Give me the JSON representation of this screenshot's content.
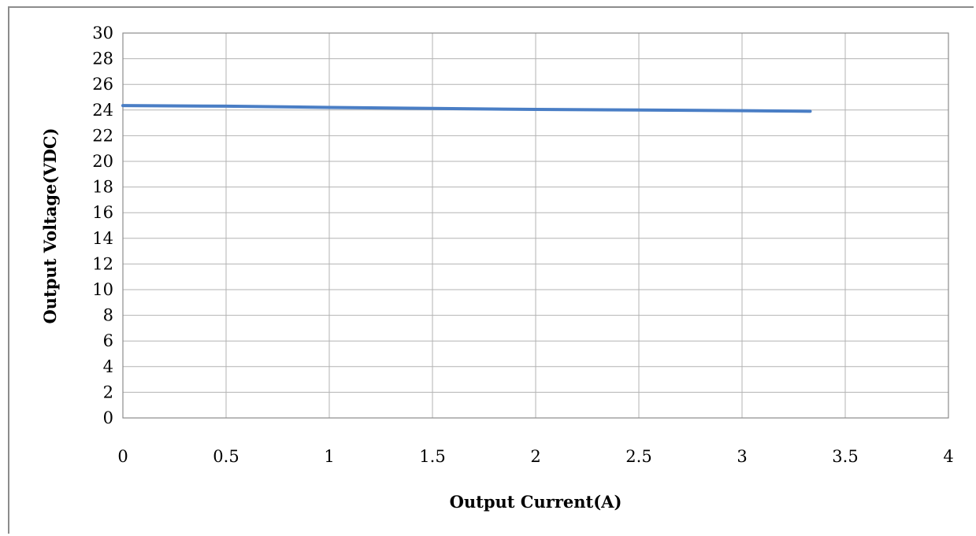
{
  "chart_data": {
    "type": "line",
    "title": "",
    "xlabel": "Output Current(A)",
    "ylabel": "Output Voltage(VDC)",
    "xlim": [
      0,
      4
    ],
    "ylim": [
      0,
      30
    ],
    "x_ticks": [
      "0",
      "0.5",
      "1",
      "1.5",
      "2",
      "2.5",
      "3",
      "3.5",
      "4"
    ],
    "y_ticks": [
      "0",
      "2",
      "4",
      "6",
      "8",
      "10",
      "12",
      "14",
      "16",
      "18",
      "20",
      "22",
      "24",
      "26",
      "28",
      "30"
    ],
    "grid": true,
    "legend": "none",
    "series": [
      {
        "color": "#4a7ec5",
        "x": [
          0,
          0.5,
          1,
          1.5,
          2,
          2.5,
          3,
          3.33
        ],
        "y": [
          24.35,
          24.3,
          24.2,
          24.12,
          24.05,
          24.0,
          23.95,
          23.9
        ]
      }
    ]
  }
}
